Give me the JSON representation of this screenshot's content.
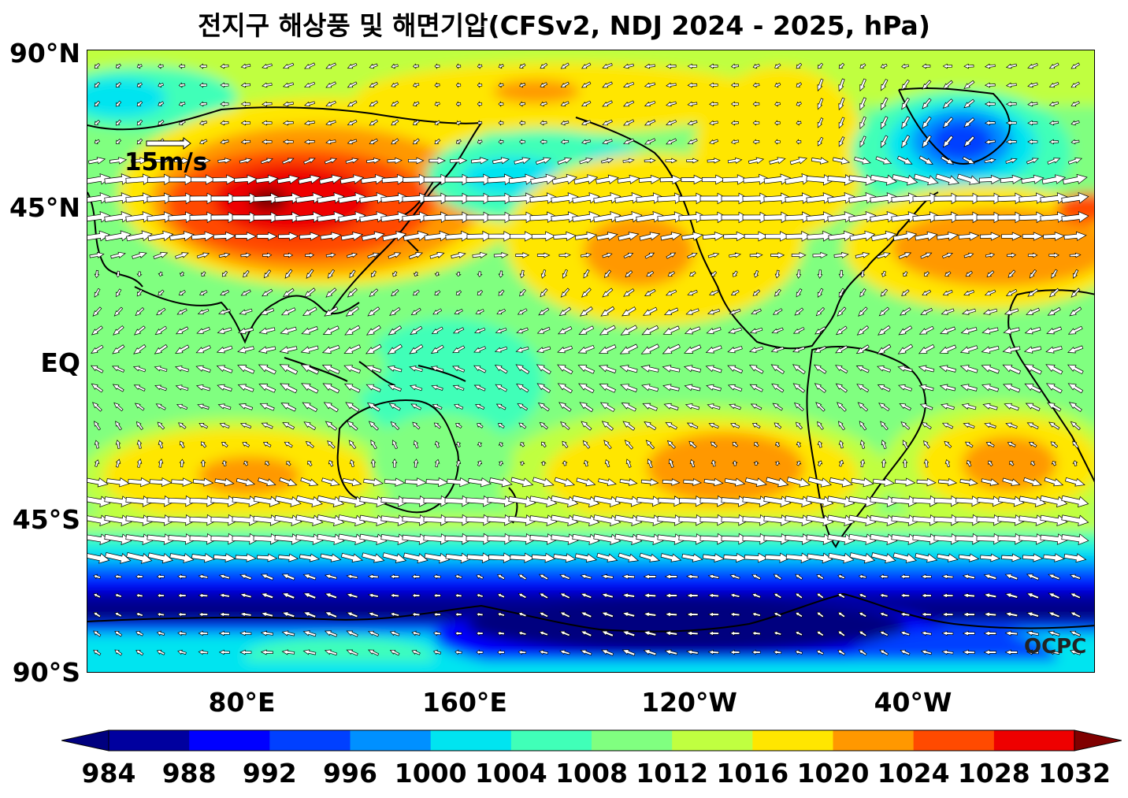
{
  "title": "전지구 해상풍 및 해면기압(CFSv2, NDJ 2024 - 2025, hPa)",
  "lat_labels": [
    "90°N",
    "45°N",
    "EQ",
    "45°S",
    "90°S"
  ],
  "lon_labels": [
    "80°E",
    "160°E",
    "120°W",
    "40°W"
  ],
  "reference_vector": {
    "label": "15m/s",
    "speed_ms": 15
  },
  "watermark": "OCPC",
  "colorbar": {
    "levels": [
      "984",
      "988",
      "992",
      "996",
      "1000",
      "1004",
      "1008",
      "1012",
      "1016",
      "1020",
      "1024",
      "1028",
      "1032"
    ],
    "colors": [
      "#00007f",
      "#00009f",
      "#0000ff",
      "#0040ff",
      "#0090ff",
      "#00e4f0",
      "#40ffb8",
      "#80ff80",
      "#c0ff40",
      "#ffe600",
      "#ff9800",
      "#ff4a00",
      "#ee0000",
      "#800000"
    ],
    "unit": "hPa"
  }
}
